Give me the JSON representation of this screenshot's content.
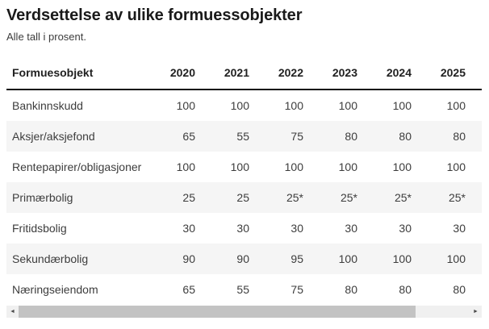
{
  "page": {
    "title": "Verdsettelse av ulike formuessobjekter",
    "subtitle": "Alle tall i prosent."
  },
  "table": {
    "header": [
      "Formuesobjekt",
      "2020",
      "2021",
      "2022",
      "2023",
      "2024",
      "2025"
    ],
    "rows": [
      {
        "label": "Bankinnskudd",
        "values": [
          "100",
          "100",
          "100",
          "100",
          "100",
          "100"
        ]
      },
      {
        "label": "Aksjer/aksjefond",
        "values": [
          "65",
          "55",
          "75",
          "80",
          "80",
          "80"
        ]
      },
      {
        "label": "Rentepapirer/obligasjoner",
        "values": [
          "100",
          "100",
          "100",
          "100",
          "100",
          "100"
        ]
      },
      {
        "label": "Primærbolig",
        "values": [
          "25",
          "25",
          "25*",
          "25*",
          "25*",
          "25*"
        ]
      },
      {
        "label": "Fritidsbolig",
        "values": [
          "30",
          "30",
          "30",
          "30",
          "30",
          "30"
        ]
      },
      {
        "label": "Sekundærbolig",
        "values": [
          "90",
          "90",
          "95",
          "100",
          "100",
          "100"
        ]
      },
      {
        "label": "Næringseiendom",
        "values": [
          "65",
          "55",
          "75",
          "80",
          "80",
          "80"
        ]
      }
    ]
  },
  "scrollbar": {
    "left_arrow": "◄",
    "right_arrow": "►"
  },
  "colors": {
    "heading_text": "#1a1a1a",
    "header_text": "#212121",
    "body_text": "#3d3d3d",
    "header_border": "#111111",
    "row_stripe": "#f5f5f5",
    "scrollbar_track": "#f0f0f0",
    "scrollbar_thumb": "#c3c3c3"
  },
  "chart_data": {
    "type": "table",
    "title": "Verdsettelse av ulike formuessobjekter",
    "subtitle": "Alle tall i prosent.",
    "columns": [
      "Formuesobjekt",
      "2020",
      "2021",
      "2022",
      "2023",
      "2024",
      "2025"
    ],
    "rows": [
      [
        "Bankinnskudd",
        "100",
        "100",
        "100",
        "100",
        "100",
        "100"
      ],
      [
        "Aksjer/aksjefond",
        "65",
        "55",
        "75",
        "80",
        "80",
        "80"
      ],
      [
        "Rentepapirer/obligasjoner",
        "100",
        "100",
        "100",
        "100",
        "100",
        "100"
      ],
      [
        "Primærbolig",
        "25",
        "25",
        "25*",
        "25*",
        "25*",
        "25*"
      ],
      [
        "Fritidsbolig",
        "30",
        "30",
        "30",
        "30",
        "30",
        "30"
      ],
      [
        "Sekundærbolig",
        "90",
        "90",
        "95",
        "100",
        "100",
        "100"
      ],
      [
        "Næringseiendom",
        "65",
        "55",
        "75",
        "80",
        "80",
        "80"
      ]
    ]
  }
}
